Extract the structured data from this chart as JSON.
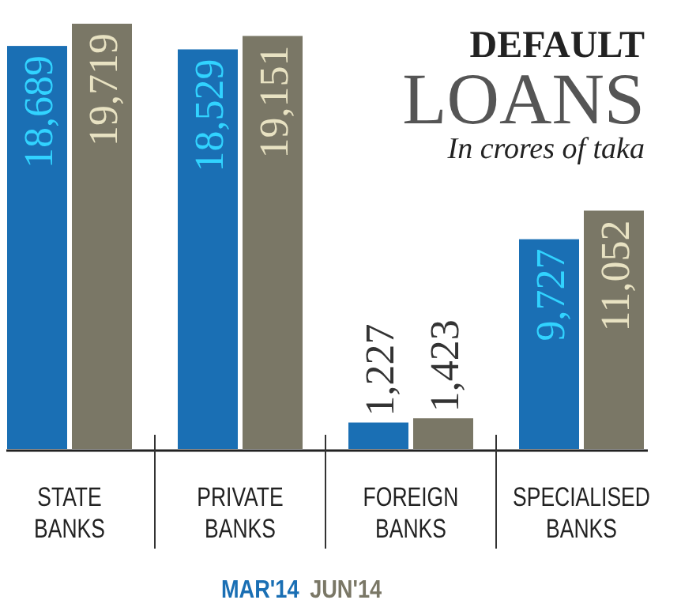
{
  "chart_data": {
    "type": "bar",
    "title": "DEFAULT LOANS",
    "subtitle": "In crores of taka",
    "categories": [
      "STATE BANKS",
      "PRIVATE BANKS",
      "FOREIGN BANKS",
      "SPECIALISED BANKS"
    ],
    "series": [
      {
        "name": "MAR'14",
        "color": "#1a6fb4",
        "values": [
          18689,
          18529,
          1227,
          9727
        ],
        "value_labels": [
          "18,689",
          "18,529",
          "1,227",
          "9,727"
        ]
      },
      {
        "name": "JUN'14",
        "color": "#7a7766",
        "values": [
          19719,
          19151,
          1423,
          11052
        ],
        "value_labels": [
          "19,719",
          "19,151",
          "1,423",
          "11,052"
        ]
      }
    ],
    "legend": "bottom"
  }
}
